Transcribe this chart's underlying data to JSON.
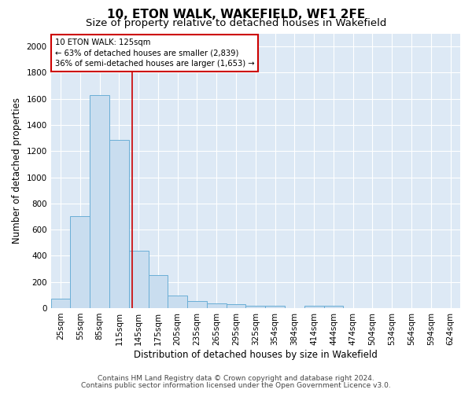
{
  "title": "10, ETON WALK, WAKEFIELD, WF1 2FE",
  "subtitle": "Size of property relative to detached houses in Wakefield",
  "xlabel": "Distribution of detached houses by size in Wakefield",
  "ylabel": "Number of detached properties",
  "footnote1": "Contains HM Land Registry data © Crown copyright and database right 2024.",
  "footnote2": "Contains public sector information licensed under the Open Government Licence v3.0.",
  "bar_color": "#c9ddef",
  "bar_edge_color": "#6aaed6",
  "background_color": "#dde9f5",
  "grid_color": "#ffffff",
  "annotation_line1": "10 ETON WALK: 125sqm",
  "annotation_line2": "← 63% of detached houses are smaller (2,839)",
  "annotation_line3": "36% of semi-detached houses are larger (1,653) →",
  "vline_color": "#cc0000",
  "annotation_box_facecolor": "#ffffff",
  "annotation_border_color": "#cc0000",
  "categories": [
    "25sqm",
    "55sqm",
    "85sqm",
    "115sqm",
    "145sqm",
    "175sqm",
    "205sqm",
    "235sqm",
    "265sqm",
    "295sqm",
    "325sqm",
    "354sqm",
    "384sqm",
    "414sqm",
    "444sqm",
    "474sqm",
    "504sqm",
    "534sqm",
    "564sqm",
    "594sqm",
    "624sqm"
  ],
  "values": [
    70,
    700,
    1630,
    1285,
    440,
    255,
    95,
    55,
    35,
    30,
    20,
    15,
    0,
    20,
    15,
    0,
    0,
    0,
    0,
    0,
    0
  ],
  "ylim": [
    0,
    2100
  ],
  "yticks": [
    0,
    200,
    400,
    600,
    800,
    1000,
    1200,
    1400,
    1600,
    1800,
    2000
  ],
  "vline_x": 3.67,
  "title_fontsize": 11,
  "subtitle_fontsize": 9.5,
  "label_fontsize": 8.5,
  "tick_fontsize": 7.5,
  "footnote_fontsize": 6.5
}
